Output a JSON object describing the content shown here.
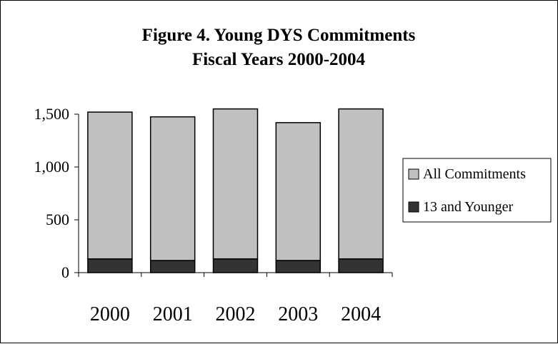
{
  "chart_data": {
    "type": "bar",
    "stacked": true,
    "title": "Figure 4.  Young DYS Commitments",
    "subtitle": "Fiscal Years 2000-2004",
    "xlabel": "",
    "ylabel": "",
    "categories": [
      "2000",
      "2001",
      "2002",
      "2003",
      "2004"
    ],
    "ylim": [
      0,
      1500
    ],
    "yticks": [
      0,
      500,
      1000,
      1500
    ],
    "ytick_labels": [
      "0",
      "500",
      "1,000",
      "1,500"
    ],
    "grid": false,
    "legend_position": "right",
    "series": [
      {
        "name": "13 and Younger",
        "values": [
          130,
          115,
          130,
          115,
          130
        ],
        "color": "#333333"
      },
      {
        "name": "All Commitments",
        "values": [
          1390,
          1360,
          1420,
          1305,
          1420
        ],
        "color": "#c0c0c0"
      }
    ]
  }
}
